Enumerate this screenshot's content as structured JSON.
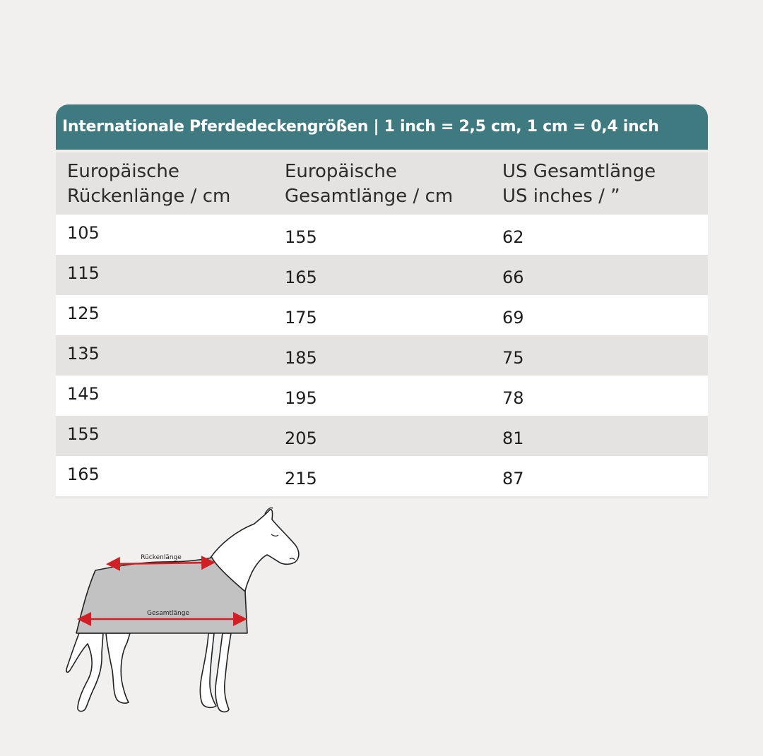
{
  "table": {
    "title": "Internationale Pferdedeckengrößen | 1 inch = 2,5 cm, 1 cm = 0,4 inch",
    "headers": [
      [
        "Europäische",
        "Rückenlänge / cm"
      ],
      [
        "Europäische",
        "Gesamtlänge / cm"
      ],
      [
        "US Gesamtlänge",
        "US inches / ”"
      ]
    ],
    "rows": [
      [
        "105",
        "155",
        "62"
      ],
      [
        "115",
        "165",
        "66"
      ],
      [
        "125",
        "175",
        "69"
      ],
      [
        "135",
        "185",
        "75"
      ],
      [
        "145",
        "195",
        "78"
      ],
      [
        "155",
        "205",
        "81"
      ],
      [
        "165",
        "215",
        "87"
      ]
    ]
  },
  "diagram": {
    "back_length_label": "Rückenlänge",
    "total_length_label": "Gesamtlänge",
    "arrow_color": "#d11f26",
    "blanket_color": "#c2c2c2"
  },
  "colors": {
    "title_bar": "#3f7a80",
    "background": "#f1f0ee",
    "row_grey": "#e4e3e1",
    "row_white": "#ffffff"
  }
}
